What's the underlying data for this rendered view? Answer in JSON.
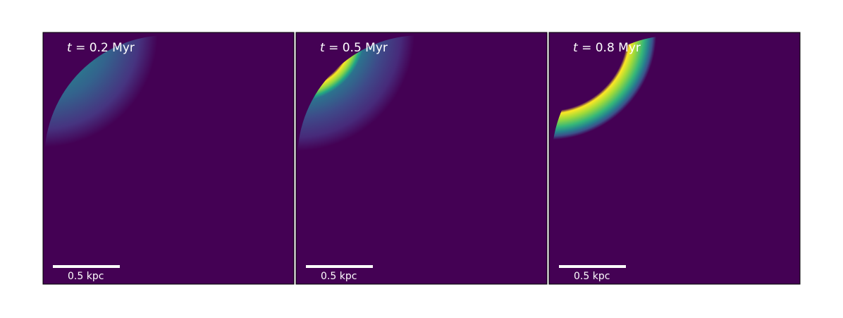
{
  "panels": [
    {
      "symbol": "t",
      "time": "= 0.2 Myr",
      "scale_bar": "0.5 kpc"
    },
    {
      "symbol": "t",
      "time": "= 0.5 Myr",
      "scale_bar": "0.5 kpc"
    },
    {
      "symbol": "t",
      "time": "= 0.8 Myr",
      "scale_bar": "0.5 kpc"
    }
  ]
}
